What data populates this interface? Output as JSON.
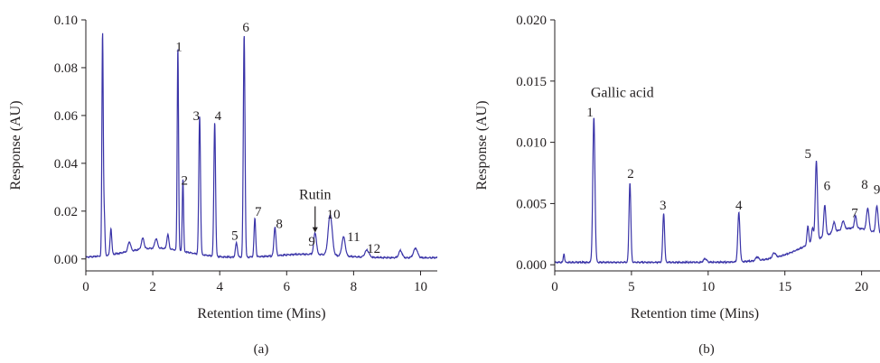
{
  "colors": {
    "trace": "#3a34a8",
    "axis": "#231f20",
    "text": "#231f20"
  },
  "chart_data": [
    {
      "type": "line",
      "panel_label": "(a)",
      "xlabel": "Retention time (Mins)",
      "ylabel": "Response (AU)",
      "xlim": [
        0,
        10.5
      ],
      "ylim": [
        -0.005,
        0.1
      ],
      "x_ticks": [
        0,
        2,
        4,
        6,
        8,
        10
      ],
      "x_tick_labels": [
        "0",
        "2",
        "4",
        "6",
        "8",
        "10"
      ],
      "y_ticks": [
        0.0,
        0.02,
        0.04,
        0.06,
        0.08,
        0.1
      ],
      "y_tick_labels": [
        "0.00",
        "0.02",
        "0.04",
        "0.06",
        "0.08",
        "0.10"
      ],
      "grid": false,
      "baseline": 0.0005,
      "peaks": [
        {
          "x": 0.5,
          "h": 0.093,
          "w": 0.02
        },
        {
          "x": 0.55,
          "h": 0.017,
          "w": 0.02
        },
        {
          "x": 0.75,
          "h": 0.011,
          "w": 0.025
        },
        {
          "x": 1.3,
          "h": 0.004,
          "w": 0.04
        },
        {
          "x": 1.7,
          "h": 0.0045,
          "w": 0.04
        },
        {
          "x": 2.1,
          "h": 0.004,
          "w": 0.04
        },
        {
          "x": 2.45,
          "h": 0.006,
          "w": 0.03
        },
        {
          "x": 2.75,
          "h": 0.085,
          "w": 0.02
        },
        {
          "x": 2.9,
          "h": 0.03,
          "w": 0.02
        },
        {
          "x": 3.4,
          "h": 0.058,
          "w": 0.025
        },
        {
          "x": 3.85,
          "h": 0.056,
          "w": 0.025
        },
        {
          "x": 4.5,
          "h": 0.006,
          "w": 0.03
        },
        {
          "x": 4.73,
          "h": 0.093,
          "w": 0.025
        },
        {
          "x": 5.05,
          "h": 0.016,
          "w": 0.025
        },
        {
          "x": 5.65,
          "h": 0.012,
          "w": 0.03
        },
        {
          "x": 6.85,
          "h": 0.009,
          "w": 0.04
        },
        {
          "x": 7.3,
          "h": 0.017,
          "w": 0.06
        },
        {
          "x": 7.7,
          "h": 0.008,
          "w": 0.05
        },
        {
          "x": 8.4,
          "h": 0.003,
          "w": 0.06
        },
        {
          "x": 9.4,
          "h": 0.003,
          "w": 0.05
        },
        {
          "x": 9.85,
          "h": 0.004,
          "w": 0.06
        }
      ],
      "humps": [
        {
          "x": 2.1,
          "h": 0.004,
          "w": 0.9
        },
        {
          "x": 6.6,
          "h": 0.0015,
          "w": 0.9
        }
      ],
      "annotations": [
        {
          "text": "1",
          "x": 2.78,
          "y": 0.087
        },
        {
          "text": "2",
          "x": 2.95,
          "y": 0.031
        },
        {
          "text": "3",
          "x": 3.3,
          "y": 0.058
        },
        {
          "text": "4",
          "x": 3.95,
          "y": 0.058
        },
        {
          "text": "5",
          "x": 4.45,
          "y": 0.008
        },
        {
          "text": "6",
          "x": 4.78,
          "y": 0.095
        },
        {
          "text": "7",
          "x": 5.15,
          "y": 0.018
        },
        {
          "text": "8",
          "x": 5.78,
          "y": 0.013
        },
        {
          "text": "9",
          "x": 6.75,
          "y": 0.0055
        },
        {
          "text": "10",
          "x": 7.4,
          "y": 0.017
        },
        {
          "text": "11",
          "x": 8.0,
          "y": 0.0075
        },
        {
          "text": "12",
          "x": 8.6,
          "y": 0.0025
        },
        {
          "text": "Rutin",
          "x": 6.85,
          "y": 0.025
        }
      ],
      "arrow": {
        "x": 6.85,
        "y_from": 0.022,
        "y_to": 0.011
      }
    },
    {
      "type": "line",
      "panel_label": "(b)",
      "xlabel": "Retention time (Mins)",
      "ylabel": "Response (AU)",
      "xlim": [
        0,
        21.2
      ],
      "ylim": [
        -0.0005,
        0.02
      ],
      "x_ticks": [
        0,
        5,
        10,
        15,
        20
      ],
      "x_tick_labels": [
        "0",
        "5",
        "10",
        "15",
        "20"
      ],
      "y_ticks": [
        0.0,
        0.005,
        0.01,
        0.015,
        0.02
      ],
      "y_tick_labels": [
        "0.000",
        "0.005",
        "0.010",
        "0.015",
        "0.020"
      ],
      "grid": false,
      "baseline": 0.0002,
      "peaks": [
        {
          "x": 0.6,
          "h": 0.0007,
          "w": 0.04
        },
        {
          "x": 2.55,
          "h": 0.0118,
          "w": 0.07
        },
        {
          "x": 4.9,
          "h": 0.0065,
          "w": 0.06
        },
        {
          "x": 7.1,
          "h": 0.004,
          "w": 0.06
        },
        {
          "x": 9.8,
          "h": 0.0003,
          "w": 0.1
        },
        {
          "x": 12.0,
          "h": 0.004,
          "w": 0.07
        },
        {
          "x": 13.2,
          "h": 0.0003,
          "w": 0.1
        },
        {
          "x": 14.3,
          "h": 0.0004,
          "w": 0.1
        },
        {
          "x": 16.5,
          "h": 0.0015,
          "w": 0.06
        },
        {
          "x": 16.8,
          "h": 0.0012,
          "w": 0.06
        },
        {
          "x": 17.05,
          "h": 0.0065,
          "w": 0.07
        },
        {
          "x": 17.6,
          "h": 0.0025,
          "w": 0.07
        },
        {
          "x": 18.2,
          "h": 0.0008,
          "w": 0.08
        },
        {
          "x": 18.8,
          "h": 0.0007,
          "w": 0.08
        },
        {
          "x": 19.6,
          "h": 0.001,
          "w": 0.07
        },
        {
          "x": 20.4,
          "h": 0.0018,
          "w": 0.08
        },
        {
          "x": 21.0,
          "h": 0.0022,
          "w": 0.08
        }
      ],
      "humps": [
        {
          "x": 19.5,
          "h": 0.0028,
          "w": 2.6
        }
      ],
      "annotations": [
        {
          "text": "1",
          "x": 2.3,
          "y": 0.0121
        },
        {
          "text": "2",
          "x": 4.95,
          "y": 0.0071
        },
        {
          "text": "3",
          "x": 7.05,
          "y": 0.0045
        },
        {
          "text": "4",
          "x": 12.0,
          "y": 0.0045
        },
        {
          "text": "5",
          "x": 16.5,
          "y": 0.0087
        },
        {
          "text": "6",
          "x": 17.75,
          "y": 0.0061
        },
        {
          "text": "7",
          "x": 19.55,
          "y": 0.0039
        },
        {
          "text": "8",
          "x": 20.2,
          "y": 0.0062
        },
        {
          "text": "9",
          "x": 21.0,
          "y": 0.0058
        },
        {
          "text": "Gallic acid",
          "x": 4.4,
          "y": 0.0137
        }
      ]
    }
  ]
}
